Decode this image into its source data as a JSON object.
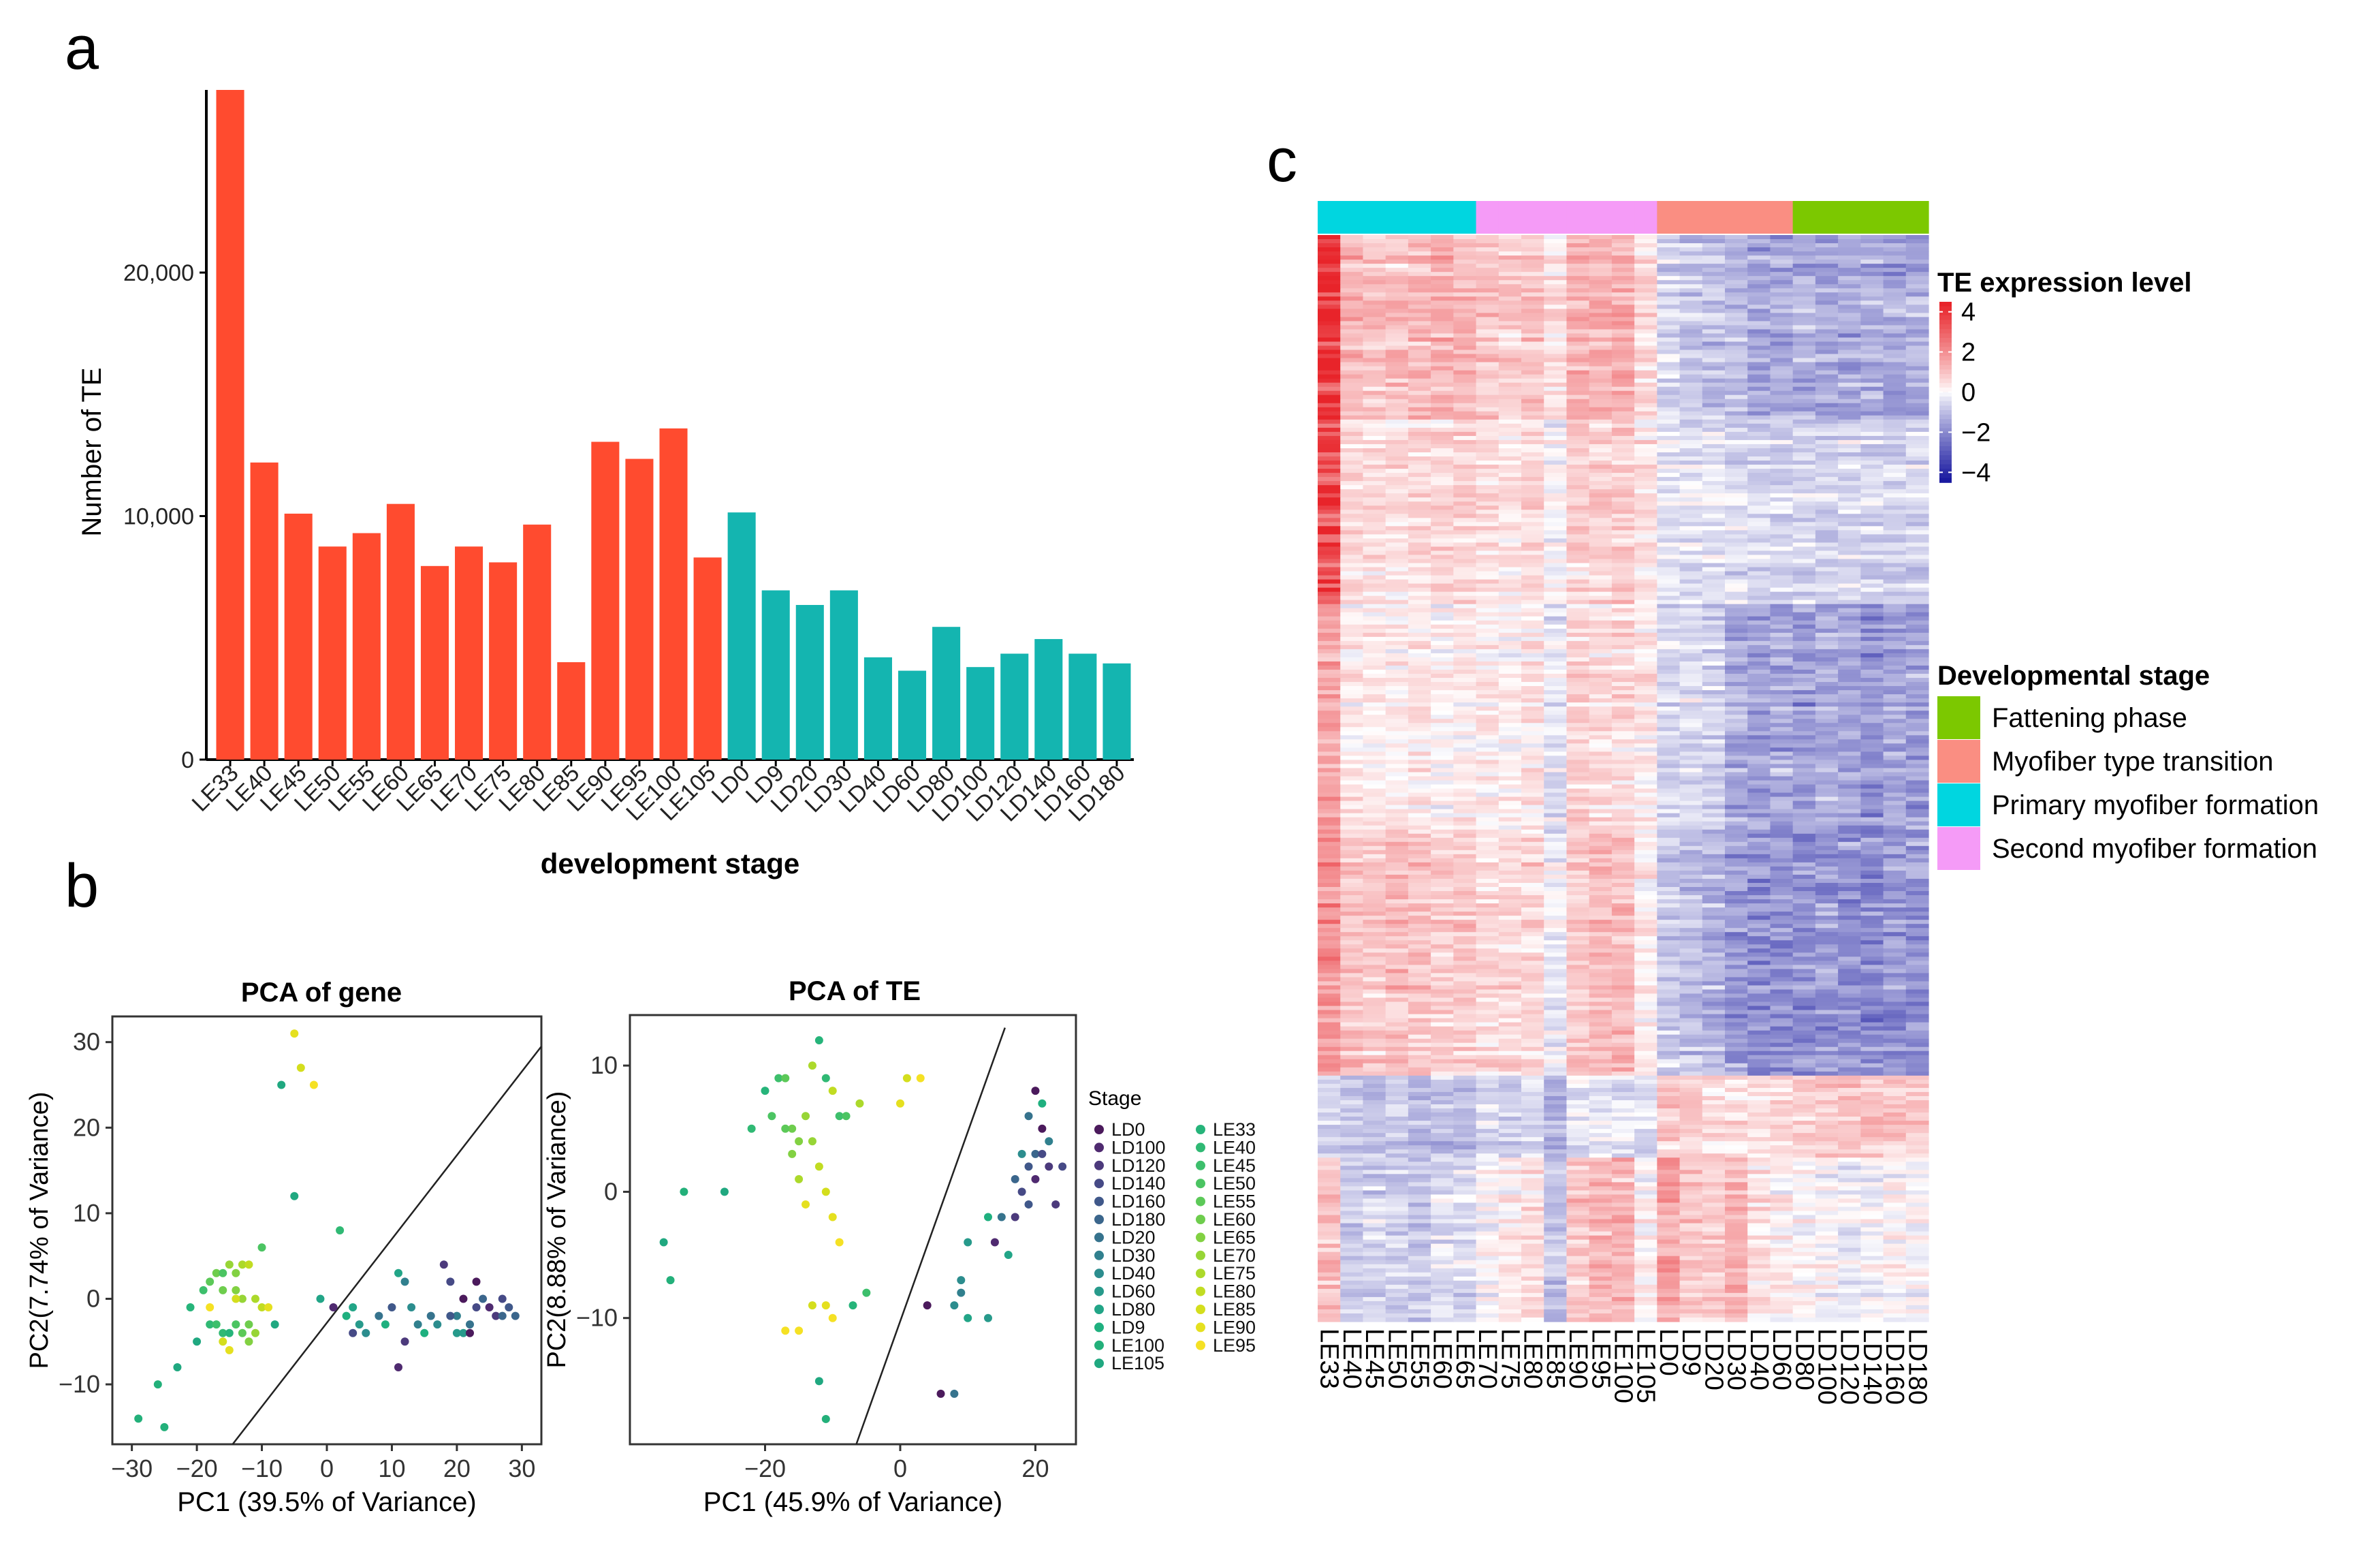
{
  "panel_labels": {
    "a": "a",
    "b": "b",
    "c": "c"
  },
  "colors": {
    "le": "#FF4B2F",
    "ld": "#14B5B0",
    "primary": "#00D6E0",
    "second": "#F59BF7",
    "transition": "#FA8E82",
    "fattening": "#7CC800"
  },
  "chart_data": [
    {
      "type": "bar",
      "id": "a",
      "title": "",
      "xlabel": "development stage",
      "ylabel": "Number of TE",
      "ylim": [
        0,
        27500
      ],
      "yticks": [
        0,
        10000,
        20000
      ],
      "ytick_labels": [
        "0",
        "10,000",
        "20,000"
      ],
      "categories": [
        "LE33",
        "LE40",
        "LE45",
        "LE50",
        "LE55",
        "LE60",
        "LE65",
        "LE70",
        "LE75",
        "LE80",
        "LE85",
        "LE90",
        "LE95",
        "LE100",
        "LE105",
        "LD0",
        "LD9",
        "LD20",
        "LD30",
        "LD40",
        "LD60",
        "LD80",
        "LD100",
        "LD120",
        "LD140",
        "LD160",
        "LD180"
      ],
      "values": [
        27500,
        12200,
        10100,
        8750,
        9300,
        10500,
        7950,
        8750,
        8100,
        9650,
        4000,
        13050,
        12350,
        13600,
        8300,
        10150,
        6950,
        6350,
        6950,
        4200,
        3650,
        5450,
        3800,
        4350,
        4950,
        4350,
        3950
      ],
      "groups": [
        "LE",
        "LE",
        "LE",
        "LE",
        "LE",
        "LE",
        "LE",
        "LE",
        "LE",
        "LE",
        "LE",
        "LE",
        "LE",
        "LE",
        "LE",
        "LD",
        "LD",
        "LD",
        "LD",
        "LD",
        "LD",
        "LD",
        "LD",
        "LD",
        "LD",
        "LD",
        "LD"
      ]
    },
    {
      "type": "scatter",
      "id": "pca-gene",
      "title": "PCA of gene",
      "xlabel": "PC1 (39.5% of Variance)",
      "ylabel": "PC2(7.74% of Variance)",
      "xlim": [
        -33,
        33
      ],
      "ylim": [
        -17,
        33
      ],
      "xticks": [
        -30,
        -20,
        -10,
        0,
        10,
        20,
        30
      ],
      "yticks": [
        -10,
        0,
        10,
        20,
        30
      ],
      "divider": [
        [
          -14.5,
          -17
        ],
        [
          33,
          29.5
        ]
      ],
      "points": [
        [
          -29,
          -14,
          "LE100"
        ],
        [
          -25,
          -15,
          "LE100"
        ],
        [
          -26,
          -10,
          "LE100"
        ],
        [
          -23,
          -8,
          "LE105"
        ],
        [
          -20,
          -5,
          "LE105"
        ],
        [
          -18,
          -3,
          "LE40"
        ],
        [
          -21,
          -1,
          "LE33"
        ],
        [
          -19,
          1,
          "LE45"
        ],
        [
          -18,
          2,
          "LE55"
        ],
        [
          -17,
          3,
          "LE60"
        ],
        [
          -16,
          3,
          "LE50"
        ],
        [
          -15,
          4,
          "LE70"
        ],
        [
          -14,
          3,
          "LE65"
        ],
        [
          -13,
          4,
          "LE75"
        ],
        [
          -12,
          4,
          "LE80"
        ],
        [
          -16,
          1,
          "LE60"
        ],
        [
          -14,
          1,
          "LE65"
        ],
        [
          -13,
          0,
          "LE70"
        ],
        [
          -11,
          0,
          "LE75"
        ],
        [
          -10,
          -1,
          "LE80"
        ],
        [
          -9,
          -1,
          "LE90"
        ],
        [
          -17,
          -3,
          "LE45"
        ],
        [
          -16,
          -4,
          "LE40"
        ],
        [
          -15,
          -4,
          "LE33"
        ],
        [
          -14,
          -3,
          "LE50"
        ],
        [
          -13,
          -4,
          "LE55"
        ],
        [
          -12,
          -3,
          "LE60"
        ],
        [
          -11,
          -4,
          "LE70"
        ],
        [
          -16,
          -5,
          "LE85"
        ],
        [
          -18,
          -1,
          "LE95"
        ],
        [
          -15,
          -6,
          "LE90"
        ],
        [
          -12,
          -5,
          "LE65"
        ],
        [
          -10,
          6,
          "LE50"
        ],
        [
          -8,
          -3,
          "LE105"
        ],
        [
          -14,
          0,
          "LE85"
        ],
        [
          -5,
          31,
          "LE90"
        ],
        [
          -4,
          27,
          "LE85"
        ],
        [
          -7,
          25,
          "LE105"
        ],
        [
          -2,
          25,
          "LE95"
        ],
        [
          -5,
          12,
          "LE105"
        ],
        [
          2,
          8,
          "LE40"
        ],
        [
          -1,
          0,
          "LD80"
        ],
        [
          1,
          -1,
          "LD100"
        ],
        [
          3,
          -2,
          "LD9"
        ],
        [
          4,
          -1,
          "LD80"
        ],
        [
          5,
          -3,
          "LD60"
        ],
        [
          6,
          -4,
          "LD40"
        ],
        [
          4,
          -4,
          "LD140"
        ],
        [
          8,
          -2,
          "LD20"
        ],
        [
          10,
          -1,
          "LD160"
        ],
        [
          11,
          3,
          "LD80"
        ],
        [
          12,
          2,
          "LD30"
        ],
        [
          13,
          -1,
          "LD40"
        ],
        [
          12,
          -5,
          "LD120"
        ],
        [
          11,
          -8,
          "LD100"
        ],
        [
          15,
          -4,
          "LD9"
        ],
        [
          16,
          -2,
          "LD20"
        ],
        [
          18,
          4,
          "LD120"
        ],
        [
          19,
          2,
          "LD140"
        ],
        [
          20,
          -2,
          "LD30"
        ],
        [
          21,
          -4,
          "LD60"
        ],
        [
          22,
          -3,
          "LD20"
        ],
        [
          23,
          2,
          "LD0"
        ],
        [
          25,
          -1,
          "LD100"
        ],
        [
          26,
          -2,
          "LD120"
        ],
        [
          27,
          0,
          "LD140"
        ],
        [
          28,
          -1,
          "LD160"
        ],
        [
          29,
          -2,
          "LD180"
        ],
        [
          24,
          0,
          "LD180"
        ],
        [
          22,
          -4,
          "LD0"
        ],
        [
          17,
          -3,
          "LD40"
        ],
        [
          19,
          -2,
          "LD160"
        ],
        [
          27,
          -2,
          "LD180"
        ],
        [
          20,
          -4,
          "LD60"
        ],
        [
          9,
          -3,
          "LD9"
        ],
        [
          14,
          -3,
          "LD30"
        ],
        [
          21,
          0,
          "LD0"
        ],
        [
          23,
          -1,
          "LD140"
        ]
      ]
    },
    {
      "type": "scatter",
      "id": "pca-te",
      "title": "PCA of TE",
      "xlabel": "PC1 (45.9% of Variance)",
      "ylabel": "PC2(8.88% of Variance)",
      "xlim": [
        -40,
        26
      ],
      "ylim": [
        -20,
        14
      ],
      "xticks": [
        -20,
        0,
        20
      ],
      "yticks": [
        -10,
        0,
        10
      ],
      "divider": [
        [
          -6.5,
          -20
        ],
        [
          15.5,
          13
        ]
      ],
      "points": [
        [
          -35,
          -4,
          "LE105"
        ],
        [
          -34,
          -7,
          "LE100"
        ],
        [
          -32,
          0,
          "LE100"
        ],
        [
          -26,
          0,
          "LE105"
        ],
        [
          -22,
          5,
          "LE40"
        ],
        [
          -20,
          8,
          "LE33"
        ],
        [
          -19,
          6,
          "LE50"
        ],
        [
          -18,
          9,
          "LE45"
        ],
        [
          -17,
          9,
          "LE55"
        ],
        [
          -16,
          5,
          "LE60"
        ],
        [
          -15,
          4,
          "LE65"
        ],
        [
          -14,
          6,
          "LE70"
        ],
        [
          -13,
          10,
          "LE75"
        ],
        [
          -12,
          12,
          "LE33"
        ],
        [
          -11,
          9,
          "LE40"
        ],
        [
          -10,
          8,
          "LE80"
        ],
        [
          -9,
          6,
          "LE45"
        ],
        [
          -13,
          4,
          "LE70"
        ],
        [
          -16,
          3,
          "LE65"
        ],
        [
          -17,
          5,
          "LE55"
        ],
        [
          -15,
          1,
          "LE75"
        ],
        [
          -12,
          2,
          "LE80"
        ],
        [
          -11,
          0,
          "LE85"
        ],
        [
          -14,
          -1,
          "LE90"
        ],
        [
          -10,
          -2,
          "LE90"
        ],
        [
          -9,
          -4,
          "LE95"
        ],
        [
          -8,
          6,
          "LE50"
        ],
        [
          -6,
          7,
          "LE75"
        ],
        [
          0,
          7,
          "LE90"
        ],
        [
          1,
          9,
          "LE85"
        ],
        [
          3,
          9,
          "LE95"
        ],
        [
          -17,
          -11,
          "LE95"
        ],
        [
          -15,
          -11,
          "LE95"
        ],
        [
          -13,
          -9,
          "LE85"
        ],
        [
          -11,
          -9,
          "LE90"
        ],
        [
          -10,
          -10,
          "LE95"
        ],
        [
          -12,
          -15,
          "LE105"
        ],
        [
          -11,
          -18,
          "LE100"
        ],
        [
          -7,
          -9,
          "LE33"
        ],
        [
          -5,
          -8,
          "LE45"
        ],
        [
          4,
          -9,
          "LD0"
        ],
        [
          8,
          -9,
          "LD40"
        ],
        [
          6,
          -16,
          "LD0"
        ],
        [
          8,
          -16,
          "LD20"
        ],
        [
          9,
          -8,
          "LD30"
        ],
        [
          10,
          -4,
          "LD60"
        ],
        [
          9,
          -7,
          "LD40"
        ],
        [
          10,
          -10,
          "LD80"
        ],
        [
          13,
          -10,
          "LD60"
        ],
        [
          14,
          -4,
          "LD100"
        ],
        [
          16,
          -5,
          "LD80"
        ],
        [
          17,
          -2,
          "LD120"
        ],
        [
          18,
          0,
          "LD140"
        ],
        [
          19,
          2,
          "LD160"
        ],
        [
          20,
          3,
          "LD180"
        ],
        [
          21,
          5,
          "LD0"
        ],
        [
          20,
          8,
          "LD0"
        ],
        [
          21,
          7,
          "LD9"
        ],
        [
          19,
          6,
          "LD20"
        ],
        [
          22,
          4,
          "LD30"
        ],
        [
          18,
          3,
          "LD40"
        ],
        [
          20,
          1,
          "LD100"
        ],
        [
          22,
          2,
          "LD120"
        ],
        [
          21,
          3,
          "LD140"
        ],
        [
          19,
          -1,
          "LD160"
        ],
        [
          17,
          1,
          "LD180"
        ],
        [
          13,
          -2,
          "LD9"
        ],
        [
          15,
          -2,
          "LD20"
        ],
        [
          23,
          -1,
          "LD120"
        ],
        [
          24,
          2,
          "LD140"
        ]
      ]
    },
    {
      "type": "heatmap",
      "id": "c",
      "title": "",
      "columns": [
        "LE33",
        "LE40",
        "LE45",
        "LE50",
        "LE55",
        "LE60",
        "LE65",
        "LE70",
        "LE75",
        "LE80",
        "LE85",
        "LE90",
        "LE95",
        "LE100",
        "LE105",
        "LD0",
        "LD9",
        "LD20",
        "LD30",
        "LD40",
        "LD60",
        "LD80",
        "LD100",
        "LD120",
        "LD140",
        "LD160",
        "LD180"
      ],
      "column_groups": [
        "Primary myofiber formation",
        "Primary myofiber formation",
        "Primary myofiber formation",
        "Primary myofiber formation",
        "Primary myofiber formation",
        "Primary myofiber formation",
        "Primary myofiber formation",
        "Second myofiber formation",
        "Second myofiber formation",
        "Second myofiber formation",
        "Second myofiber formation",
        "Second myofiber formation",
        "Second myofiber formation",
        "Second myofiber formation",
        "Second myofiber formation",
        "Myofiber type transition",
        "Myofiber type transition",
        "Myofiber type transition",
        "Myofiber type transition",
        "Myofiber type transition",
        "Myofiber type transition",
        "Fattening phase",
        "Fattening phase",
        "Fattening phase",
        "Fattening phase",
        "Fattening phase",
        "Fattening phase"
      ],
      "color_scale": {
        "min": -4.5,
        "max": 4.5,
        "low": "#1A1AA0",
        "mid": "#FFFFFF",
        "high": "#E8242A"
      },
      "legend_title": "TE expression level",
      "legend_ticks": [
        4,
        2,
        0,
        -2,
        -4
      ],
      "legend_tick_labels": [
        "4",
        "2",
        "0",
        "−2",
        "−4"
      ],
      "row_blocks": [
        {
          "rows": 45,
          "profile": [
            4.2,
            1.2,
            0.9,
            1.0,
            1.1,
            1.3,
            1.2,
            0.9,
            0.8,
            0.9,
            0.4,
            1.3,
            1.2,
            1.4,
            0.6,
            -0.6,
            -0.9,
            -1.0,
            -1.1,
            -1.5,
            -1.4,
            -1.3,
            -1.5,
            -1.4,
            -1.3,
            -1.5,
            -1.4
          ]
        },
        {
          "rows": 45,
          "profile": [
            3.5,
            0.6,
            0.5,
            0.5,
            0.6,
            0.7,
            0.7,
            0.5,
            0.4,
            0.6,
            -0.1,
            0.8,
            0.7,
            0.9,
            0.4,
            -0.3,
            -0.4,
            -0.4,
            -0.5,
            -0.6,
            -0.7,
            -0.6,
            -0.7,
            -0.6,
            -0.6,
            -0.7,
            -0.6
          ]
        },
        {
          "rows": 55,
          "profile": [
            1.5,
            0.3,
            0.2,
            0.2,
            0.3,
            0.1,
            0.2,
            0.2,
            0.1,
            0.3,
            -0.4,
            0.6,
            0.5,
            0.6,
            0.3,
            -0.6,
            -0.5,
            -0.7,
            -1.4,
            -1.6,
            -1.5,
            -1.7,
            -1.5,
            -1.6,
            -1.8,
            -1.5,
            -1.6
          ]
        },
        {
          "rows": 60,
          "profile": [
            2.0,
            1.0,
            0.9,
            1.1,
            1.0,
            0.8,
            0.9,
            0.6,
            0.6,
            0.7,
            -0.2,
            0.9,
            1.1,
            1.2,
            0.3,
            -0.8,
            -1.0,
            -1.2,
            -1.7,
            -1.9,
            -1.8,
            -1.9,
            -1.7,
            -1.8,
            -2.0,
            -1.7,
            -1.8
          ]
        },
        {
          "rows": 20,
          "profile": [
            -0.6,
            -0.9,
            -1.0,
            -0.8,
            -1.1,
            -0.9,
            -1.0,
            -0.5,
            -0.6,
            -0.4,
            -1.2,
            -0.3,
            -0.2,
            -0.4,
            -0.5,
            1.0,
            0.8,
            0.6,
            0.5,
            0.4,
            0.6,
            0.8,
            0.9,
            1.0,
            1.1,
            1.0,
            0.9
          ]
        },
        {
          "rows": 40,
          "profile": [
            1.0,
            -0.8,
            -0.6,
            -0.7,
            -0.8,
            -0.4,
            -0.5,
            0.0,
            0.2,
            0.5,
            -0.9,
            1.0,
            1.2,
            1.3,
            0.2,
            1.6,
            0.9,
            0.7,
            1.3,
            0.4,
            0.2,
            0.1,
            0.0,
            -0.2,
            -0.1,
            0.1,
            0.0
          ]
        }
      ],
      "legend": {
        "title": "Developmental stage",
        "items": [
          {
            "label": "Fattening phase",
            "color": "#7CC800"
          },
          {
            "label": "Myofiber type transition",
            "color": "#FA8E82"
          },
          {
            "label": "Primary myofiber formation",
            "color": "#00D6E0"
          },
          {
            "label": "Second myofiber formation",
            "color": "#F59BF7"
          }
        ]
      }
    }
  ],
  "stage_legend": {
    "title": "Stage",
    "col1": [
      "LD0",
      "LD100",
      "LD120",
      "LD140",
      "LD160",
      "LD180",
      "LD20",
      "LD30",
      "LD40",
      "LD60",
      "LD80",
      "LD9",
      "LE100",
      "LE105"
    ],
    "col2": [
      "LE33",
      "LE40",
      "LE45",
      "LE50",
      "LE55",
      "LE60",
      "LE65",
      "LE70",
      "LE75",
      "LE80",
      "LE85",
      "LE90",
      "LE95"
    ],
    "colors": {
      "LD0": "#4B1A5C",
      "LD100": "#4F2A70",
      "LD120": "#4C3A7C",
      "LD140": "#464A86",
      "LD160": "#40588A",
      "LD180": "#3B668C",
      "LD20": "#36738D",
      "LD30": "#31808E",
      "LD40": "#2C8D8E",
      "LD60": "#279A8B",
      "LD80": "#22A587",
      "LD9": "#1FB07F",
      "LE100": "#23B07A",
      "LE105": "#20A880",
      "LE33": "#26B47A",
      "LE40": "#30B974",
      "LE45": "#3DBF6C",
      "LE50": "#4BC462",
      "LE55": "#5CC958",
      "LE60": "#6ECD4D",
      "LE65": "#82D142",
      "LE70": "#97D536",
      "LE75": "#ACD92B",
      "LE80": "#C1DC22",
      "LE85": "#D4DE1D",
      "LE90": "#E5E01F",
      "LE95": "#F5E124"
    }
  }
}
